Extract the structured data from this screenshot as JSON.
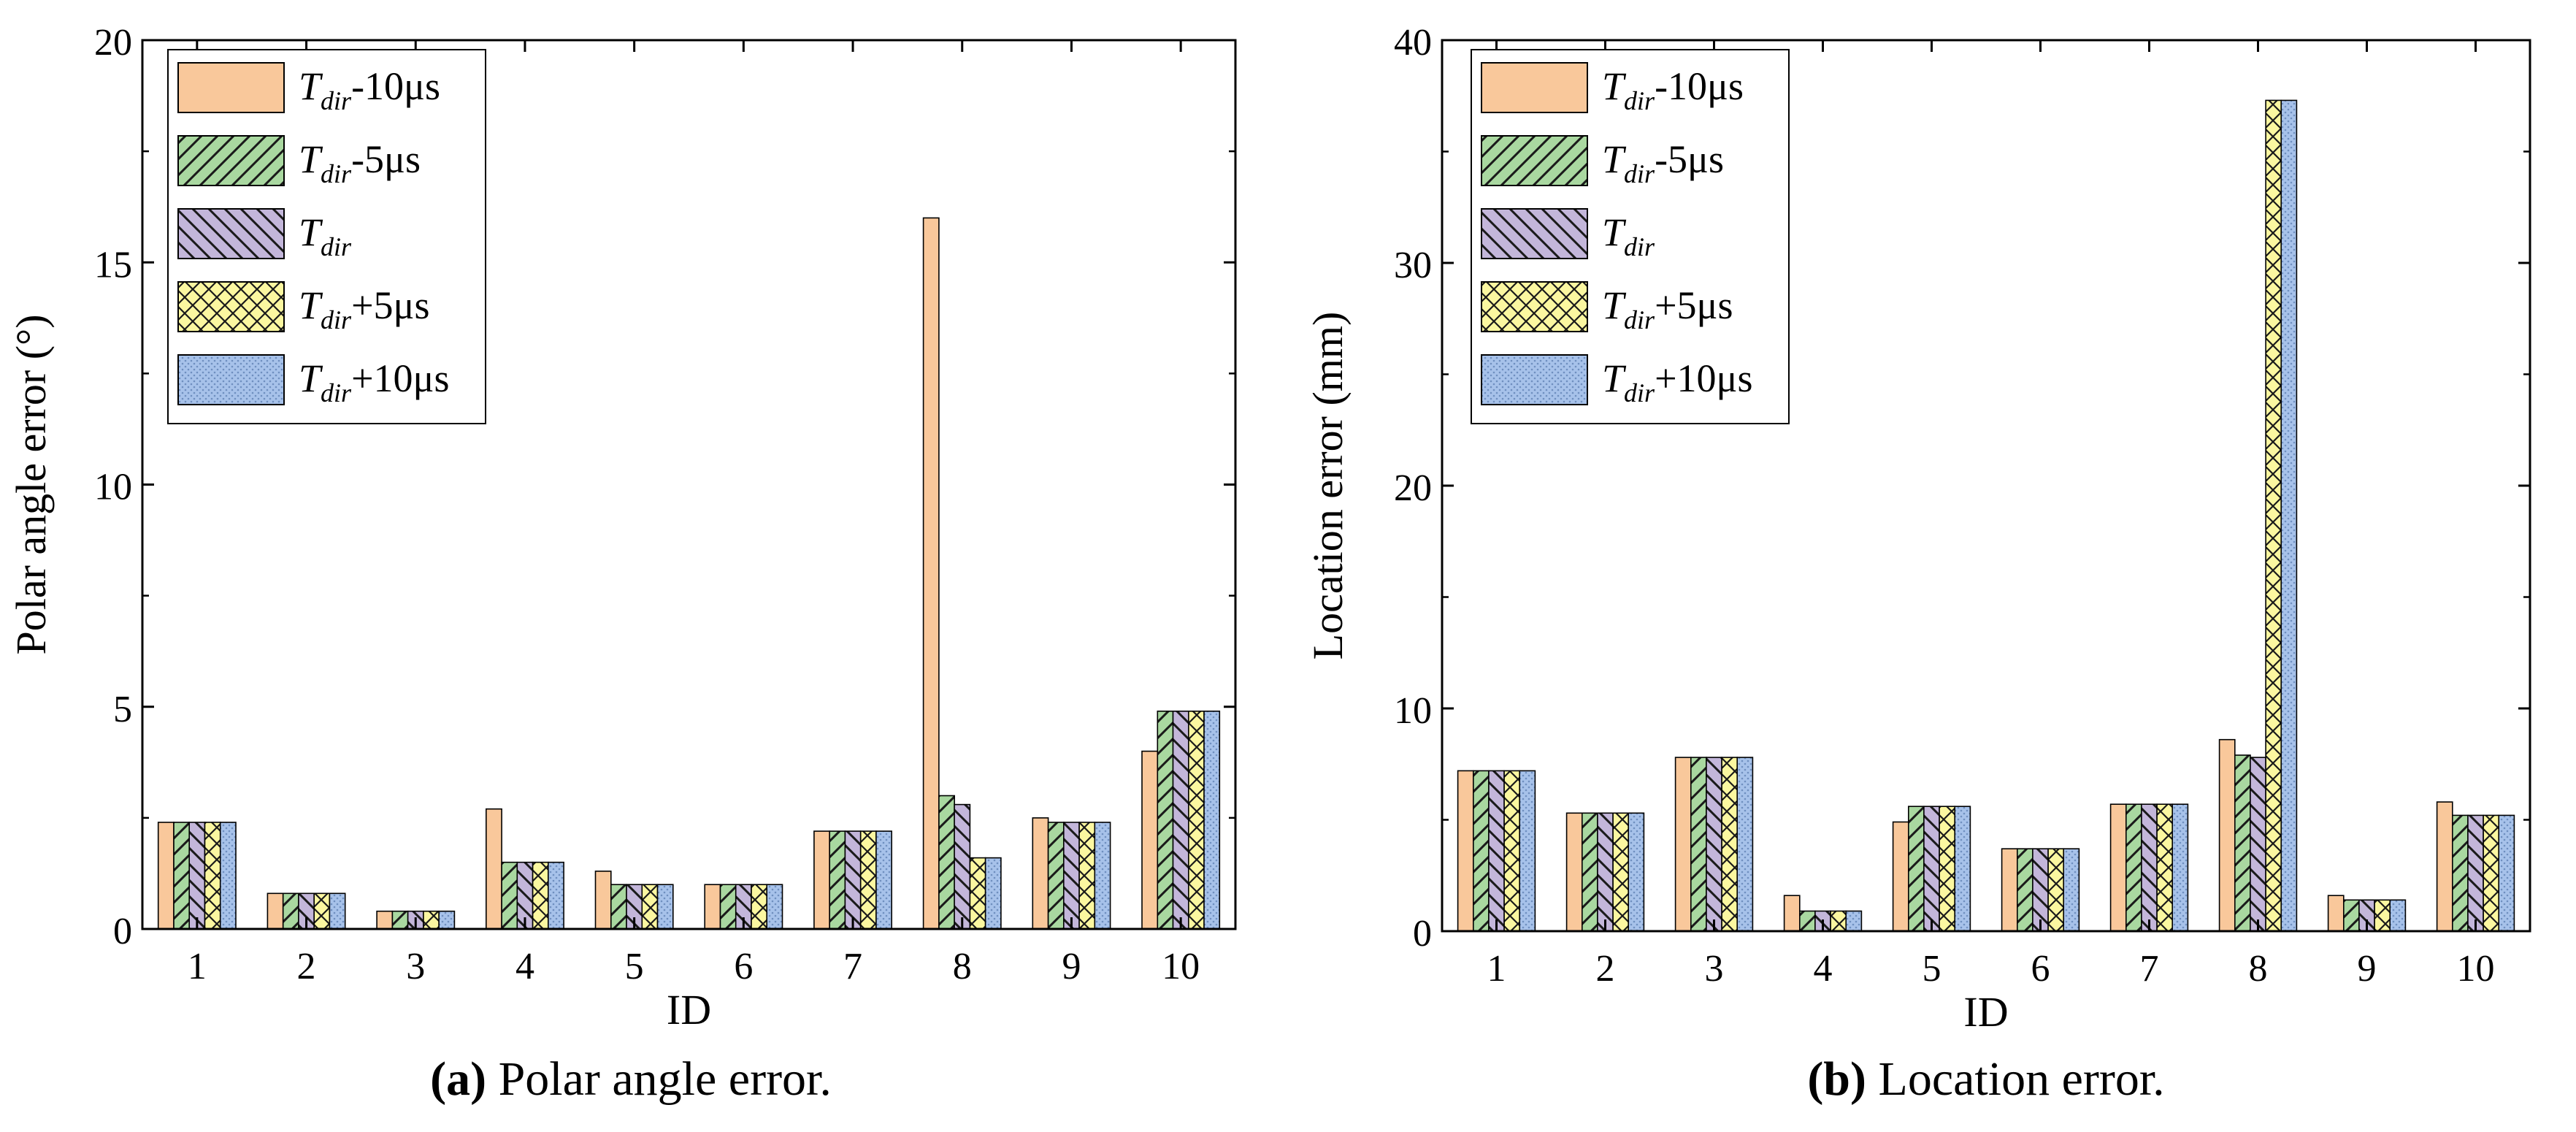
{
  "categories": [
    "1",
    "2",
    "3",
    "4",
    "5",
    "6",
    "7",
    "8",
    "9",
    "10"
  ],
  "legend": [
    {
      "key": "m10",
      "base": "T",
      "sub": "dir",
      "suffix": "-10μs",
      "color": "#F9C89B",
      "pattern": "none"
    },
    {
      "key": "m5",
      "base": "T",
      "sub": "dir",
      "suffix": "-5μs",
      "color": "#A9D8A0",
      "pattern": "diag-right"
    },
    {
      "key": "z",
      "base": "T",
      "sub": "dir",
      "suffix": "",
      "color": "#C3B6DA",
      "pattern": "diag-left"
    },
    {
      "key": "p5",
      "base": "T",
      "sub": "dir",
      "suffix": "+5μs",
      "color": "#FBF7A0",
      "pattern": "cross"
    },
    {
      "key": "p10",
      "base": "T",
      "sub": "dir",
      "suffix": "+10μs",
      "color": "#A7C2EA",
      "pattern": "dots"
    }
  ],
  "chart_data": [
    {
      "type": "bar",
      "title": "",
      "xlabel": "ID",
      "ylabel": "Polar angle error (°)",
      "ylim": [
        0,
        20
      ],
      "yticks": [
        0,
        5,
        10,
        15,
        20
      ],
      "categories": [
        "1",
        "2",
        "3",
        "4",
        "5",
        "6",
        "7",
        "8",
        "9",
        "10"
      ],
      "legend_position": "top-left",
      "caption_label": "(a)",
      "caption_text": " Polar angle error.",
      "series": [
        {
          "name": "Tdir-10μs",
          "values": [
            2.4,
            0.8,
            0.4,
            2.7,
            1.3,
            1.0,
            2.2,
            16.0,
            2.5,
            4.0
          ]
        },
        {
          "name": "Tdir-5μs",
          "values": [
            2.4,
            0.8,
            0.4,
            1.5,
            1.0,
            1.0,
            2.2,
            3.0,
            2.4,
            4.9
          ]
        },
        {
          "name": "Tdir",
          "values": [
            2.4,
            0.8,
            0.4,
            1.5,
            1.0,
            1.0,
            2.2,
            2.8,
            2.4,
            4.9
          ]
        },
        {
          "name": "Tdir+5μs",
          "values": [
            2.4,
            0.8,
            0.4,
            1.5,
            1.0,
            1.0,
            2.2,
            1.6,
            2.4,
            4.9
          ]
        },
        {
          "name": "Tdir+10μs",
          "values": [
            2.4,
            0.8,
            0.4,
            1.5,
            1.0,
            1.0,
            2.2,
            1.6,
            2.4,
            4.9
          ]
        }
      ]
    },
    {
      "type": "bar",
      "title": "",
      "xlabel": "ID",
      "ylabel": "Location error (mm)",
      "ylim": [
        0,
        40
      ],
      "yticks": [
        0,
        10,
        20,
        30,
        40
      ],
      "categories": [
        "1",
        "2",
        "3",
        "4",
        "5",
        "6",
        "7",
        "8",
        "9",
        "10"
      ],
      "legend_position": "top-left",
      "caption_label": "(b)",
      "caption_text": " Location error.",
      "series": [
        {
          "name": "Tdir-10μs",
          "values": [
            7.2,
            5.3,
            7.8,
            1.6,
            4.9,
            3.7,
            5.7,
            8.6,
            1.6,
            5.8
          ]
        },
        {
          "name": "Tdir-5μs",
          "values": [
            7.2,
            5.3,
            7.8,
            0.9,
            5.6,
            3.7,
            5.7,
            7.9,
            1.4,
            5.2
          ]
        },
        {
          "name": "Tdir",
          "values": [
            7.2,
            5.3,
            7.8,
            0.9,
            5.6,
            3.7,
            5.7,
            7.8,
            1.4,
            5.2
          ]
        },
        {
          "name": "Tdir+5μs",
          "values": [
            7.2,
            5.3,
            7.8,
            0.9,
            5.6,
            3.7,
            5.7,
            37.3,
            1.4,
            5.2
          ]
        },
        {
          "name": "Tdir+10μs",
          "values": [
            7.2,
            5.3,
            7.8,
            0.9,
            5.6,
            3.7,
            5.7,
            37.3,
            1.4,
            5.2
          ]
        }
      ]
    }
  ]
}
